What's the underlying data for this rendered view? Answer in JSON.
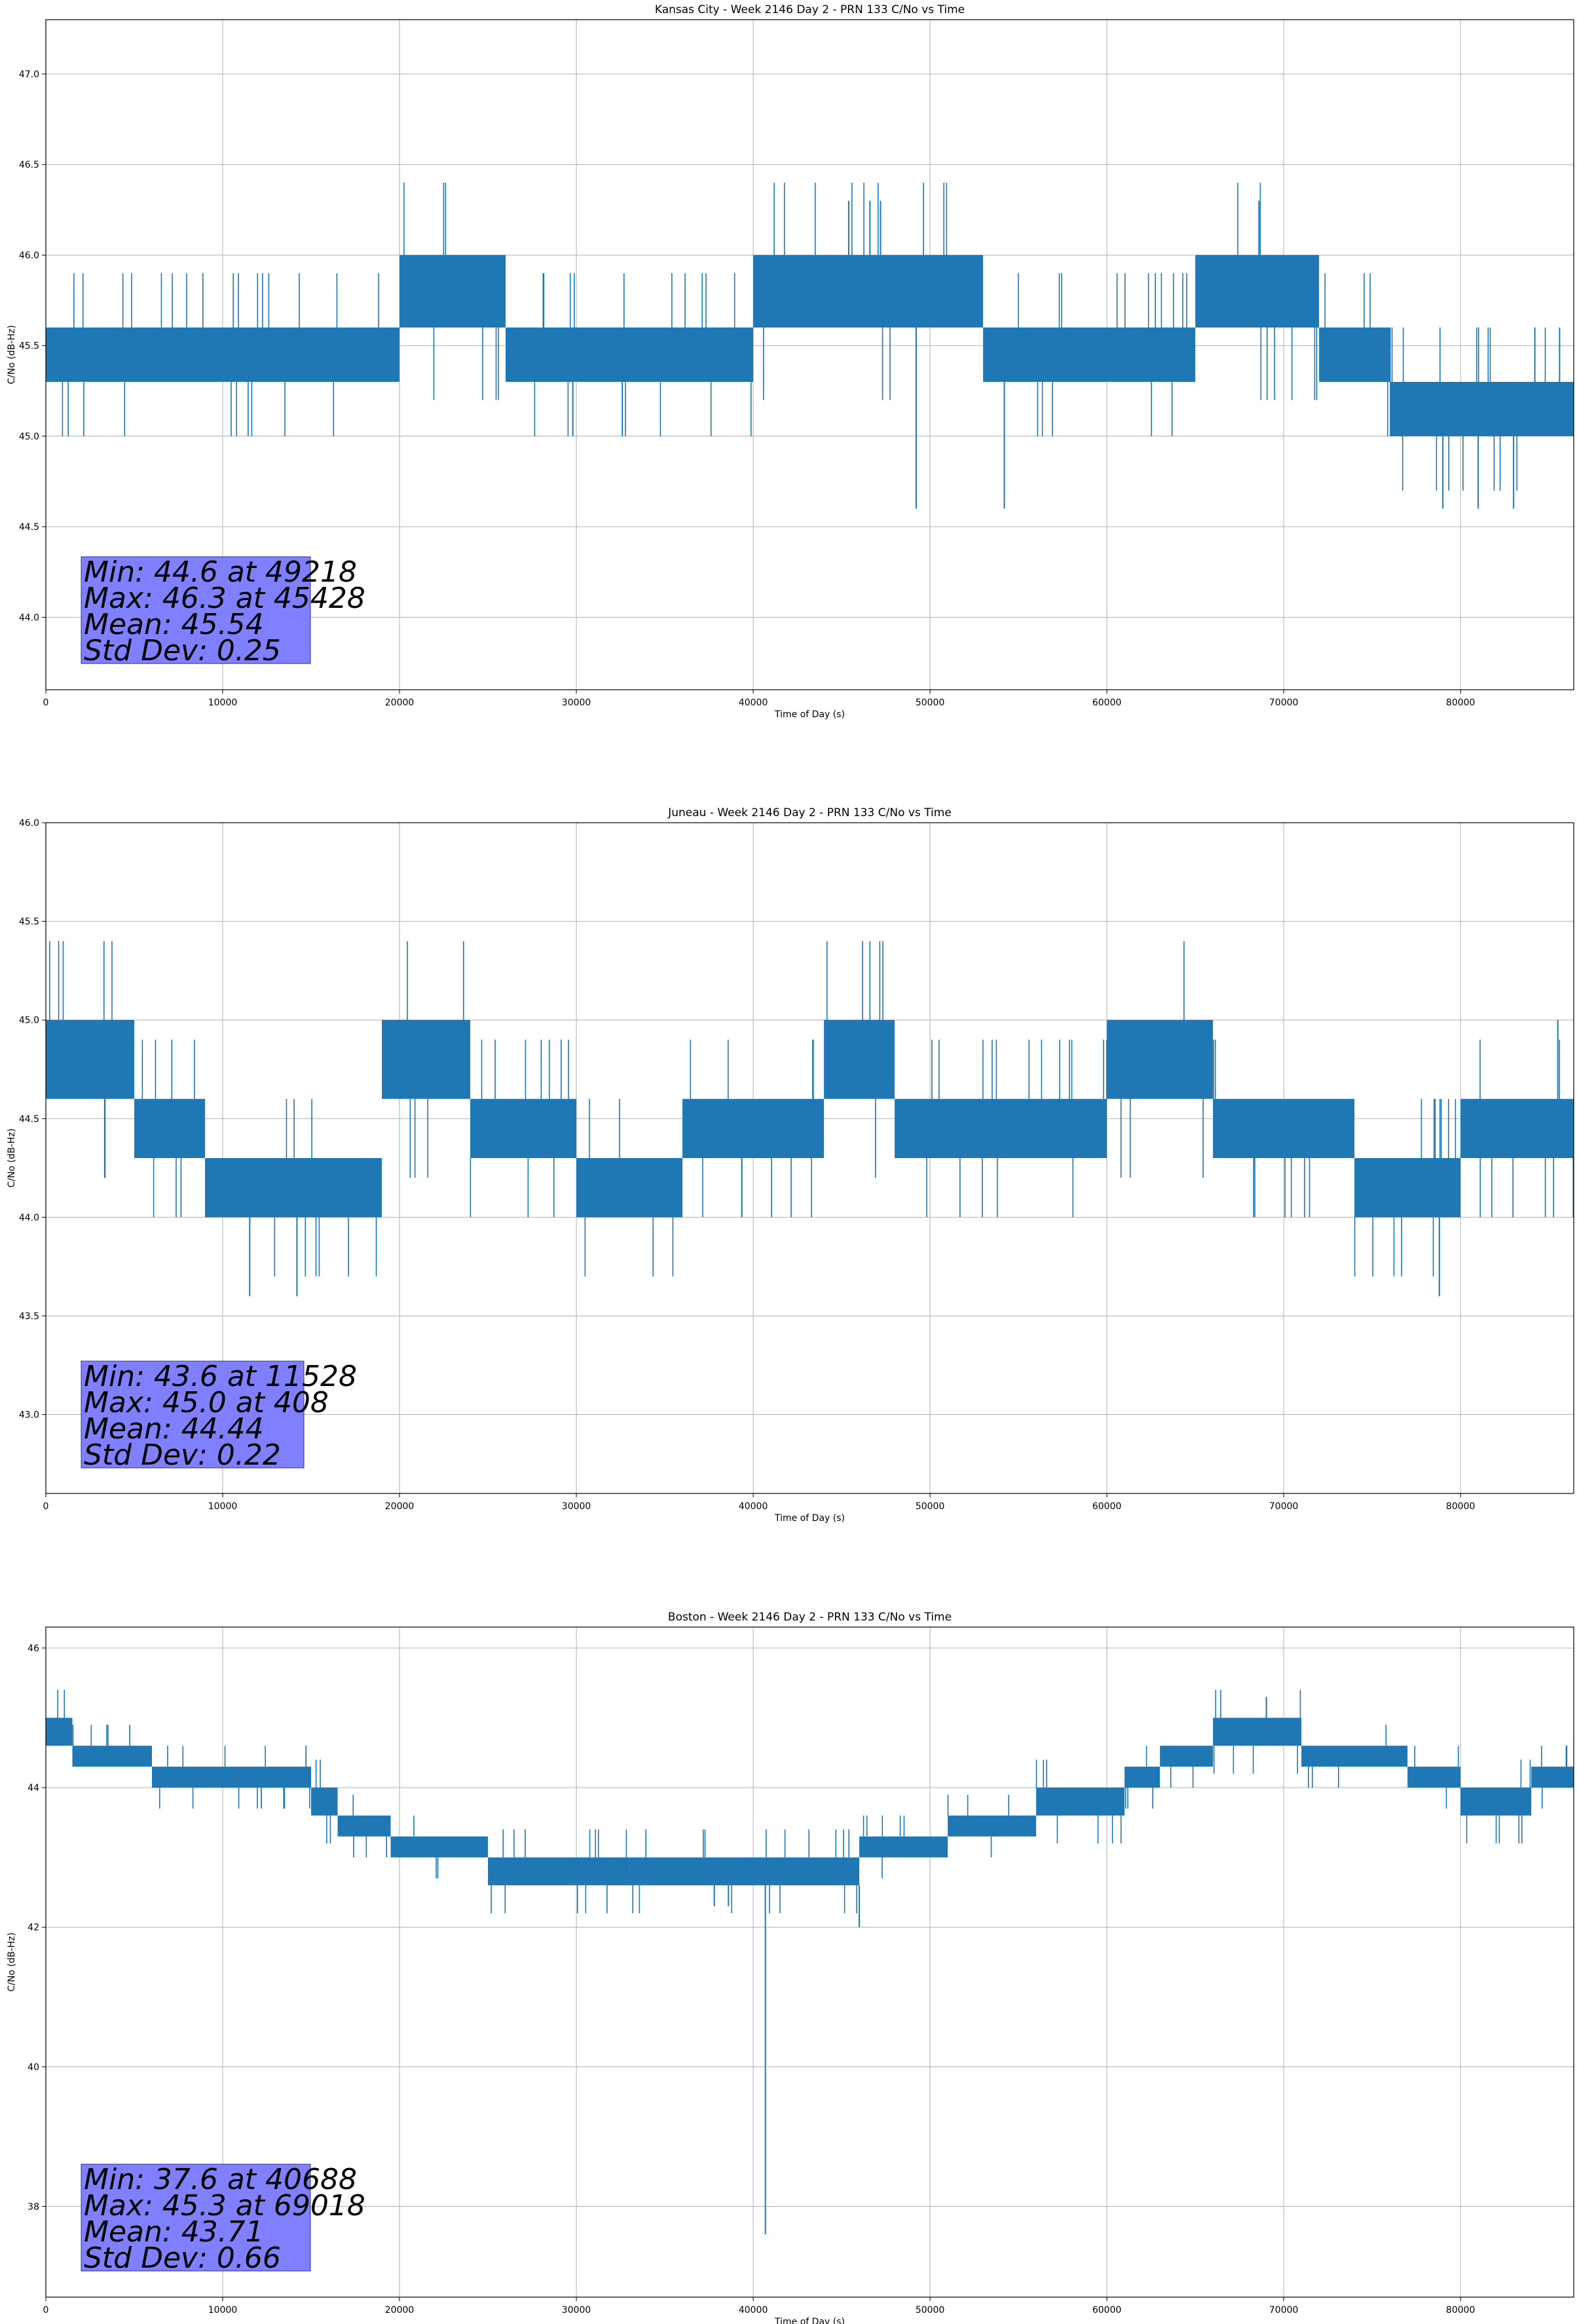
{
  "chart_data": [
    {
      "type": "line",
      "title": "Kansas City - Week 2146 Day 2 - PRN 133 C/No vs Time",
      "xlabel": "Time of Day (s)",
      "ylabel": "C/No (dB-Hz)",
      "xlim": [
        0,
        86400
      ],
      "ylim": [
        43.6,
        47.3
      ],
      "xticks": [
        0,
        10000,
        20000,
        30000,
        40000,
        50000,
        60000,
        70000,
        80000
      ],
      "yticks": [
        44.0,
        44.5,
        45.0,
        45.5,
        46.0,
        46.5,
        47.0
      ],
      "ytick_decimals": 1,
      "grid": true,
      "line_color": "#1f77b4",
      "segments": [
        {
          "x": [
            0,
            2000
          ],
          "lo": 45.3,
          "hi": 45.6
        },
        {
          "x": [
            2000,
            20000
          ],
          "lo": 45.3,
          "hi": 45.6
        },
        {
          "x": [
            20000,
            26000
          ],
          "lo": 45.6,
          "hi": 46.0
        },
        {
          "x": [
            26000,
            40000
          ],
          "lo": 45.3,
          "hi": 45.6
        },
        {
          "x": [
            40000,
            53000
          ],
          "lo": 45.6,
          "hi": 46.0
        },
        {
          "x": [
            53000,
            65000
          ],
          "lo": 45.3,
          "hi": 45.6
        },
        {
          "x": [
            65000,
            72000
          ],
          "lo": 45.6,
          "hi": 46.0
        },
        {
          "x": [
            72000,
            76000
          ],
          "lo": 45.3,
          "hi": 45.6
        },
        {
          "x": [
            76000,
            86400
          ],
          "lo": 45.0,
          "hi": 45.3
        }
      ],
      "spikes": [
        {
          "x": 29800,
          "y": 45.0
        },
        {
          "x": 32600,
          "y": 45.0
        },
        {
          "x": 45400,
          "y": 46.3
        },
        {
          "x": 46600,
          "y": 46.3
        },
        {
          "x": 47200,
          "y": 46.3
        },
        {
          "x": 49218,
          "y": 44.6
        },
        {
          "x": 54200,
          "y": 44.6
        },
        {
          "x": 68600,
          "y": 46.3
        },
        {
          "x": 79000,
          "y": 44.6
        },
        {
          "x": 81000,
          "y": 44.6
        },
        {
          "x": 83000,
          "y": 44.6
        },
        {
          "x": 84200,
          "y": 45.6
        },
        {
          "x": 85600,
          "y": 45.6
        }
      ],
      "stats": {
        "min_line": "Min: 44.6 at 49218",
        "max_line": "Max: 46.3 at 45428",
        "mean_line": "Mean: 45.54",
        "std_line": "Std Dev: 0.25"
      },
      "stats_box_color": "#8080ff"
    },
    {
      "type": "line",
      "title": "Juneau - Week 2146 Day 2 - PRN 133 C/No vs Time",
      "xlabel": "Time of Day (s)",
      "ylabel": "C/No (dB-Hz)",
      "xlim": [
        0,
        86400
      ],
      "ylim": [
        42.6,
        46.0
      ],
      "xticks": [
        0,
        10000,
        20000,
        30000,
        40000,
        50000,
        60000,
        70000,
        80000
      ],
      "yticks": [
        43.0,
        43.5,
        44.0,
        44.5,
        45.0,
        45.5,
        46.0
      ],
      "ytick_decimals": 1,
      "grid": true,
      "line_color": "#1f77b4",
      "segments": [
        {
          "x": [
            0,
            5000
          ],
          "lo": 44.6,
          "hi": 45.0
        },
        {
          "x": [
            5000,
            9000
          ],
          "lo": 44.3,
          "hi": 44.6
        },
        {
          "x": [
            9000,
            19000
          ],
          "lo": 44.0,
          "hi": 44.3
        },
        {
          "x": [
            19000,
            24000
          ],
          "lo": 44.6,
          "hi": 45.0
        },
        {
          "x": [
            24000,
            30000
          ],
          "lo": 44.3,
          "hi": 44.6
        },
        {
          "x": [
            30000,
            36000
          ],
          "lo": 44.0,
          "hi": 44.3
        },
        {
          "x": [
            36000,
            44000
          ],
          "lo": 44.3,
          "hi": 44.6
        },
        {
          "x": [
            44000,
            48000
          ],
          "lo": 44.6,
          "hi": 45.0
        },
        {
          "x": [
            48000,
            60000
          ],
          "lo": 44.3,
          "hi": 44.6
        },
        {
          "x": [
            60000,
            66000
          ],
          "lo": 44.6,
          "hi": 45.0
        },
        {
          "x": [
            66000,
            74000
          ],
          "lo": 44.3,
          "hi": 44.6
        },
        {
          "x": [
            74000,
            80000
          ],
          "lo": 44.0,
          "hi": 44.3
        },
        {
          "x": [
            80000,
            86400
          ],
          "lo": 44.3,
          "hi": 44.6
        }
      ],
      "spikes": [
        {
          "x": 11528,
          "y": 43.6
        },
        {
          "x": 14200,
          "y": 43.6
        },
        {
          "x": 78800,
          "y": 43.6
        },
        {
          "x": 408,
          "y": 45.0
        },
        {
          "x": 85500,
          "y": 45.0
        }
      ],
      "stats": {
        "min_line": "Min: 43.6 at 11528",
        "max_line": "Max: 45.0 at 408",
        "mean_line": "Mean: 44.44",
        "std_line": "Std Dev: 0.22"
      },
      "stats_box_color": "#8080ff"
    },
    {
      "type": "line",
      "title": "Boston - Week 2146 Day 2 - PRN 133 C/No vs Time",
      "xlabel": "Time of Day (s)",
      "ylabel": "C/No (dB-Hz)",
      "xlim": [
        0,
        86400
      ],
      "ylim": [
        36.7,
        46.3
      ],
      "xticks": [
        0,
        10000,
        20000,
        30000,
        40000,
        50000,
        60000,
        70000,
        80000
      ],
      "yticks": [
        38,
        40,
        42,
        44,
        46
      ],
      "ytick_decimals": 0,
      "grid": true,
      "line_color": "#1f77b4",
      "segments": [
        {
          "x": [
            0,
            1500
          ],
          "lo": 44.6,
          "hi": 45.0
        },
        {
          "x": [
            1500,
            6000
          ],
          "lo": 44.3,
          "hi": 44.6
        },
        {
          "x": [
            6000,
            9500
          ],
          "lo": 44.0,
          "hi": 44.3
        },
        {
          "x": [
            9500,
            15000
          ],
          "lo": 44.0,
          "hi": 44.3
        },
        {
          "x": [
            15000,
            16500
          ],
          "lo": 43.6,
          "hi": 44.0
        },
        {
          "x": [
            16500,
            19500
          ],
          "lo": 43.3,
          "hi": 43.6
        },
        {
          "x": [
            19500,
            25000
          ],
          "lo": 43.0,
          "hi": 43.3
        },
        {
          "x": [
            25000,
            33000
          ],
          "lo": 42.6,
          "hi": 43.0
        },
        {
          "x": [
            33000,
            40000
          ],
          "lo": 42.6,
          "hi": 43.0
        },
        {
          "x": [
            40000,
            46000
          ],
          "lo": 42.6,
          "hi": 43.0
        },
        {
          "x": [
            46000,
            51000
          ],
          "lo": 43.0,
          "hi": 43.3
        },
        {
          "x": [
            51000,
            56000
          ],
          "lo": 43.3,
          "hi": 43.6
        },
        {
          "x": [
            56000,
            61000
          ],
          "lo": 43.6,
          "hi": 44.0
        },
        {
          "x": [
            61000,
            63000
          ],
          "lo": 44.0,
          "hi": 44.3
        },
        {
          "x": [
            63000,
            66000
          ],
          "lo": 44.3,
          "hi": 44.6
        },
        {
          "x": [
            66000,
            71000
          ],
          "lo": 44.6,
          "hi": 45.0
        },
        {
          "x": [
            71000,
            77000
          ],
          "lo": 44.3,
          "hi": 44.6
        },
        {
          "x": [
            77000,
            80000
          ],
          "lo": 44.0,
          "hi": 44.3
        },
        {
          "x": [
            80000,
            84000
          ],
          "lo": 43.6,
          "hi": 44.0
        },
        {
          "x": [
            84000,
            86400
          ],
          "lo": 44.0,
          "hi": 44.3
        }
      ],
      "spikes": [
        {
          "x": 40688,
          "y": 37.6
        },
        {
          "x": 69018,
          "y": 45.3
        },
        {
          "x": 46000,
          "y": 42.0
        },
        {
          "x": 37800,
          "y": 42.3
        },
        {
          "x": 38600,
          "y": 42.3
        },
        {
          "x": 86000,
          "y": 44.6
        }
      ],
      "stats": {
        "min_line": "Min: 37.6 at 40688",
        "max_line": "Max: 45.3 at 69018",
        "mean_line": "Mean: 43.71",
        "std_line": "Std Dev: 0.66"
      },
      "stats_box_color": "#8080ff"
    }
  ]
}
